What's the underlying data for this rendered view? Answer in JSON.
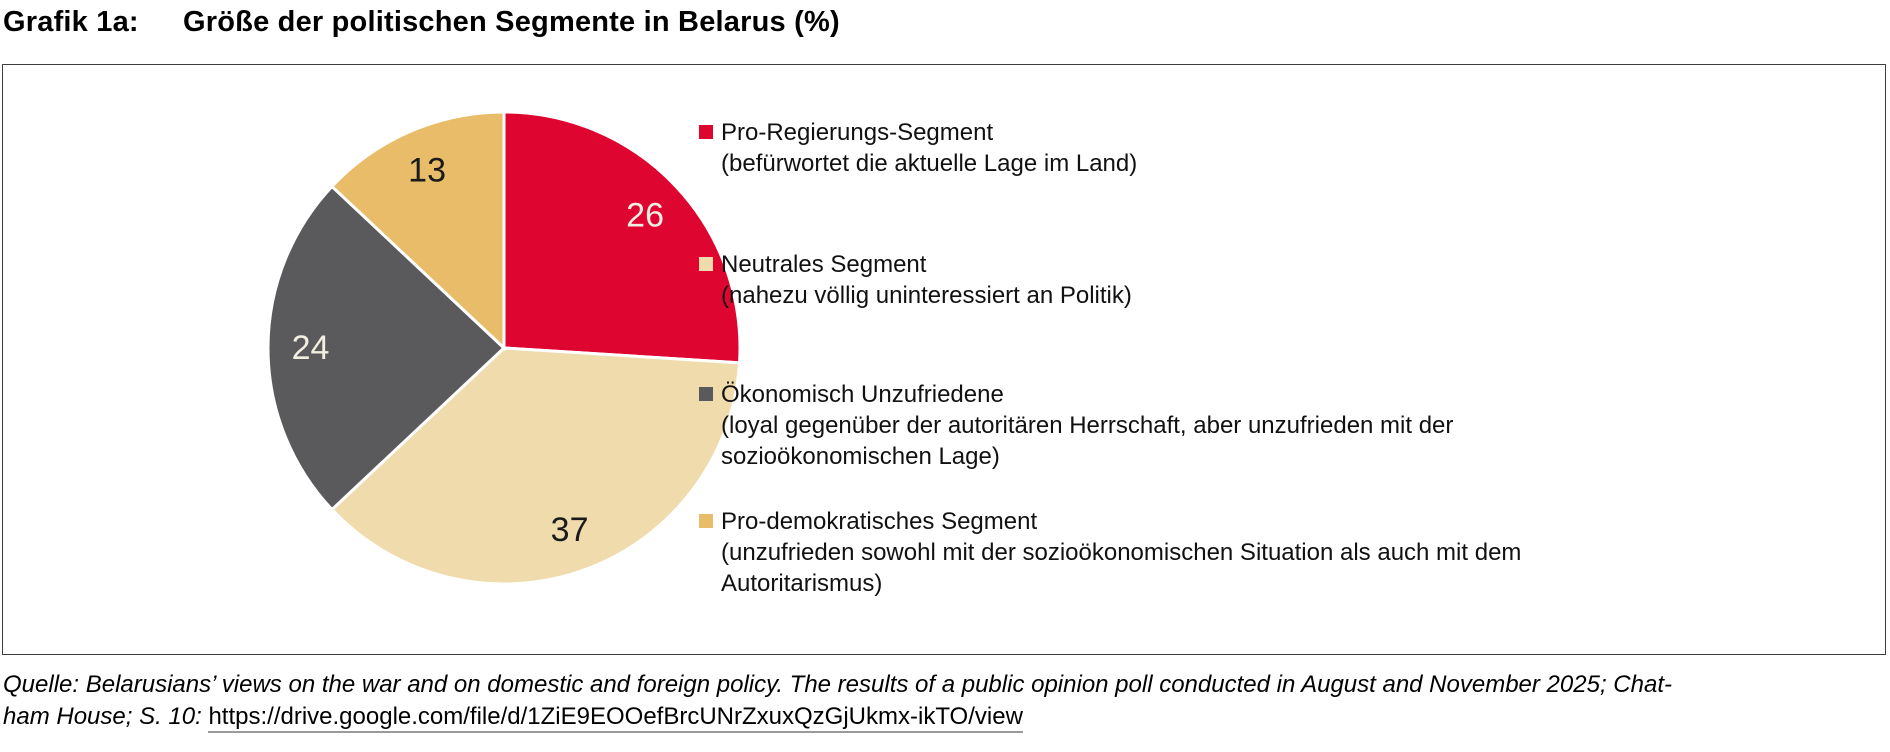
{
  "title": {
    "label": "Grafik 1a:",
    "text": "Größe der politischen Segmente in Belarus (%)"
  },
  "chart_data": {
    "type": "pie",
    "unit": "%",
    "start_angle_deg": 0,
    "direction": "clockwise",
    "legend_position": "right",
    "slices": [
      {
        "label": "Pro-Regierungs-Segment",
        "desc_lines": [
          "(befürwortet die aktuelle Lage im Land)"
        ],
        "value": 26,
        "color": "#DE0531",
        "value_label_color": "#F2EEE2"
      },
      {
        "label": "Neutrales Segment",
        "desc_lines": [
          "(nahezu völlig uninteressiert an Politik)"
        ],
        "value": 37,
        "color": "#F0DBAD",
        "value_label_color": "#1a1a1a"
      },
      {
        "label": "Ökonomisch Unzufriedene",
        "desc_lines": [
          "(loyal gegenüber der autoritären Herrschaft, aber unzufrieden mit der",
          "sozioökonomischen Lage)"
        ],
        "value": 24,
        "color": "#5A595C",
        "value_label_color": "#F2EEE2"
      },
      {
        "label": "Pro-demokratisches Segment",
        "desc_lines": [
          "(unzufrieden sowohl mit der sozioökonomischen Situation als auch mit dem",
          "Autoritarismus)"
        ],
        "value": 13,
        "color": "#E8BC69",
        "value_label_color": "#1a1a1a"
      }
    ]
  },
  "source": {
    "line1": "Quelle: Belarusians’ views on the war and on domestic and foreign policy. The results of a public opinion poll conducted in August and November 2025; Chat-",
    "line2_prefix": "ham House; S. 10: ",
    "link": "https://drive.google.com/file/d/1ZiE9EOOefBrcUNrZxuxQzGjUkmx-ikTO/view"
  }
}
